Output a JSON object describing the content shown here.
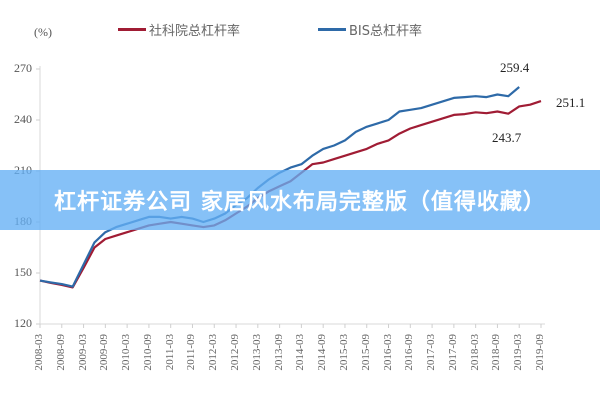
{
  "chart_data": {
    "type": "line",
    "title": "",
    "ylabel": "(%)",
    "xlabel": "",
    "ylim": [
      120,
      270
    ],
    "yticks": [
      120,
      150,
      180,
      210,
      240,
      270
    ],
    "grid": false,
    "legend_position": "top",
    "x_tick_labels": [
      "2008-03",
      "2008-09",
      "2009-03",
      "2009-09",
      "2010-03",
      "2010-09",
      "2011-03",
      "2011-09",
      "2012-03",
      "2012-09",
      "2013-03",
      "2013-09",
      "2014-03",
      "2014-09",
      "2015-03",
      "2015-09",
      "2016-03",
      "2016-09",
      "2017-03",
      "2017-09",
      "2018-03",
      "2018-09",
      "2019-03",
      "2019-09"
    ],
    "x": [
      "2008-03",
      "2008-06",
      "2008-09",
      "2008-12",
      "2009-03",
      "2009-06",
      "2009-09",
      "2009-12",
      "2010-03",
      "2010-06",
      "2010-09",
      "2010-12",
      "2011-03",
      "2011-06",
      "2011-09",
      "2011-12",
      "2012-03",
      "2012-06",
      "2012-09",
      "2012-12",
      "2013-03",
      "2013-06",
      "2013-09",
      "2013-12",
      "2014-03",
      "2014-06",
      "2014-09",
      "2014-12",
      "2015-03",
      "2015-06",
      "2015-09",
      "2015-12",
      "2016-03",
      "2016-06",
      "2016-09",
      "2016-12",
      "2017-03",
      "2017-06",
      "2017-09",
      "2017-12",
      "2018-03",
      "2018-06",
      "2018-09",
      "2018-12",
      "2019-03",
      "2019-06",
      "2019-09"
    ],
    "series": [
      {
        "name": "社科院总杠杆率",
        "color": "#a01c34",
        "values": [
          145.5,
          144.2,
          143,
          141.5,
          153,
          165,
          170,
          172,
          174,
          176,
          178,
          179,
          180,
          179,
          178,
          177,
          178,
          181,
          185,
          189,
          194,
          198,
          201,
          204,
          209,
          214,
          215,
          217,
          219,
          221,
          223,
          226,
          228,
          232,
          235,
          237,
          239,
          241,
          243,
          243.5,
          244.5,
          244,
          245,
          243.7,
          248,
          249,
          251.1
        ]
      },
      {
        "name": "BIS总杠杆率",
        "color": "#2e6aa8",
        "values": [
          145.5,
          144.5,
          143.5,
          142,
          155,
          168,
          174,
          177,
          179,
          181,
          183,
          183,
          182,
          183,
          182,
          180,
          182,
          185,
          190,
          194,
          200,
          205,
          209,
          212,
          214,
          219,
          223,
          225,
          228,
          233,
          236,
          238,
          240,
          245,
          246,
          247,
          249,
          251,
          253,
          253.5,
          254,
          253.5,
          255,
          254,
          259.4,
          null,
          null
        ]
      }
    ],
    "annotations": [
      {
        "text": "259.4",
        "series": "BIS总杠杆率",
        "x": "2019-03"
      },
      {
        "text": "251.1",
        "series": "社科院总杠杆率",
        "x": "2019-09"
      },
      {
        "text": "243.7",
        "series": "社科院总杠杆率",
        "x": "2018-12"
      }
    ]
  },
  "chart": {
    "unit": "(%)",
    "legend": [
      {
        "label": "社科院总杠杆率",
        "color": "#a01c34"
      },
      {
        "label": "BIS总杠杆率",
        "color": "#2e6aa8"
      }
    ],
    "annotations": {
      "blue_end": "259.4",
      "red_end": "251.1",
      "red_dip": "243.7"
    }
  },
  "banner": {
    "text": "杠杆证券公司 家居风水布局完整版（值得收藏）"
  }
}
